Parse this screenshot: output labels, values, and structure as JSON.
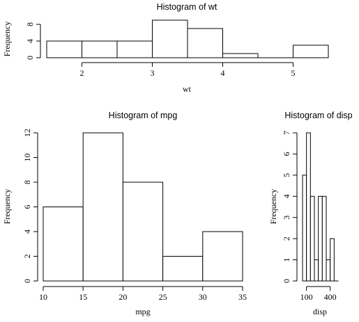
{
  "colors": {
    "bar_fill": "#ffffff",
    "stroke": "#000000",
    "background": "#ffffff"
  },
  "chart_data": [
    {
      "type": "bar",
      "subtype": "histogram",
      "title": "Histogram of wt",
      "xlabel": "wt",
      "ylabel": "Frequency",
      "bin_edges": [
        1.5,
        2.0,
        2.5,
        3.0,
        3.5,
        4.0,
        4.5,
        5.0,
        5.5
      ],
      "values": [
        4,
        4,
        4,
        9,
        7,
        1,
        0,
        3
      ],
      "xticks": [
        2,
        3,
        4,
        5
      ],
      "yticks": [
        0,
        4,
        8
      ],
      "xlim": [
        1.5,
        5.5
      ],
      "ylim": [
        0,
        9
      ],
      "grid": false
    },
    {
      "type": "bar",
      "subtype": "histogram",
      "title": "Histogram of mpg",
      "xlabel": "mpg",
      "ylabel": "Frequency",
      "bin_edges": [
        10,
        15,
        20,
        25,
        30,
        35
      ],
      "values": [
        6,
        12,
        8,
        2,
        4
      ],
      "xticks": [
        10,
        15,
        20,
        25,
        30,
        35
      ],
      "yticks": [
        0,
        2,
        4,
        6,
        8,
        10,
        12
      ],
      "xlim": [
        10,
        35
      ],
      "ylim": [
        0,
        12
      ],
      "grid": false
    },
    {
      "type": "bar",
      "subtype": "histogram",
      "title": "Histogram of disp",
      "xlabel": "disp",
      "ylabel": "Frequency",
      "bin_edges": [
        50,
        100,
        150,
        200,
        250,
        300,
        350,
        400,
        450,
        500
      ],
      "values": [
        5,
        7,
        4,
        1,
        4,
        4,
        1,
        2,
        0
      ],
      "xticks": [
        100,
        400
      ],
      "yticks": [
        0,
        1,
        2,
        3,
        4,
        5,
        6,
        7
      ],
      "xlim": [
        50,
        500
      ],
      "ylim": [
        0,
        7
      ],
      "grid": false
    }
  ]
}
